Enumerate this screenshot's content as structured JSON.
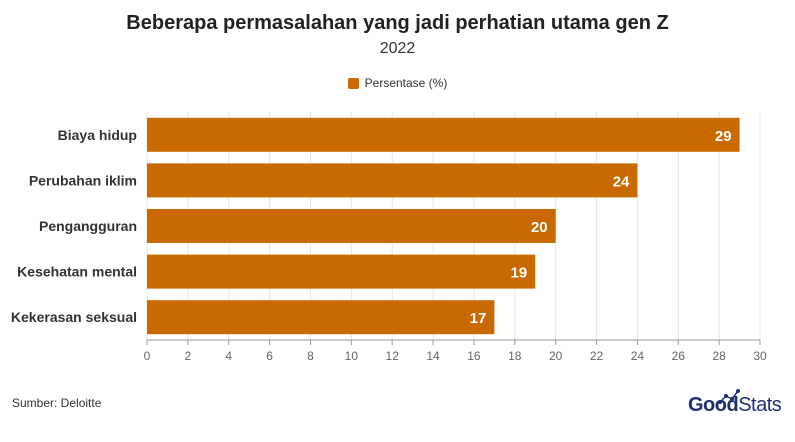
{
  "title": "Beberapa permasalahan yang jadi perhatian utama gen Z",
  "subtitle": "2022",
  "source": "Sumber: Deloitte",
  "logo": {
    "bold": "Good",
    "light": "Stats"
  },
  "colors": {
    "bar": "#c96a00",
    "grid": "#e6e6e6",
    "axis": "#999999",
    "label": "#333333",
    "logo": "#1f2f72"
  },
  "chart_data": {
    "type": "bar",
    "orientation": "horizontal",
    "categories": [
      "Biaya hidup",
      "Perubahan iklim",
      "Pengangguran",
      "Kesehatan mental",
      "Kekerasan seksual"
    ],
    "series": [
      {
        "name": "Persentase (%)",
        "values": [
          29,
          24,
          20,
          19,
          17
        ]
      }
    ],
    "xlim": [
      0,
      30
    ],
    "xticks": [
      0,
      2,
      4,
      6,
      8,
      10,
      12,
      14,
      16,
      18,
      20,
      22,
      24,
      26,
      28,
      30
    ],
    "grid": true,
    "legend": "top-center",
    "data_labels": true
  }
}
